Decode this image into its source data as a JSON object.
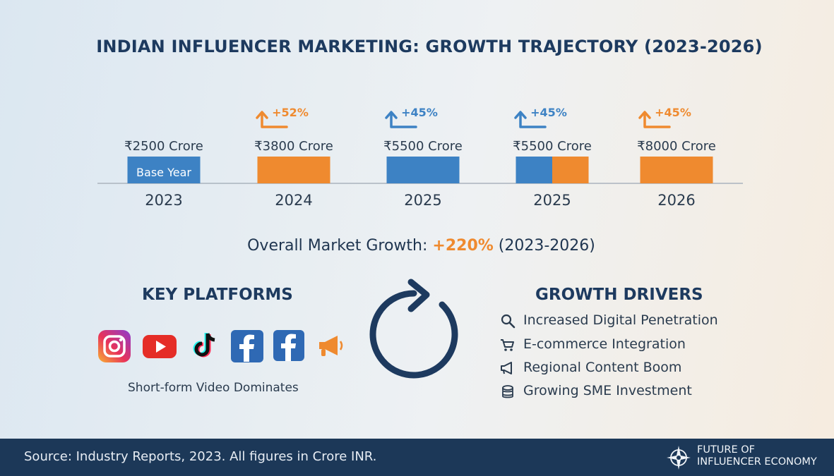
{
  "title": "INDIAN INFLUENCER MARKETING: GROWTH TRAJECTORY (2023-2026)",
  "chart_data": {
    "type": "bar",
    "categories": [
      "2023",
      "2024",
      "2025",
      "2025",
      "2026"
    ],
    "values": [
      2500,
      3800,
      5500,
      5500,
      8000
    ],
    "value_labels": [
      "₹2500 Crore",
      "₹3800 Crore",
      "₹5500 Crore",
      "₹5500 Crore",
      "₹8000 Crore"
    ],
    "growth_labels": [
      "",
      "+52%",
      "+45%",
      "+45%",
      "+45%"
    ],
    "bar_inner_labels": [
      "Base Year",
      "",
      "",
      "",
      ""
    ],
    "bar_colors": [
      "blue",
      "orange",
      "blue",
      "split",
      "orange"
    ],
    "colors": {
      "blue": "#3d82c4",
      "orange": "#ef8a2f",
      "axis": "#aab3bd",
      "text": "#2a3b4e"
    },
    "ylabel": "",
    "xlabel": ""
  },
  "overall_growth": {
    "prefix": "Overall Market Growth: ",
    "value": "+220%",
    "suffix": " (2023-2026)"
  },
  "platforms": {
    "title": "KEY PLATFORMS",
    "icons": [
      "instagram-icon",
      "youtube-icon",
      "tiktok-icon",
      "facebook-icon",
      "facebook-icon",
      "megaphone-icon"
    ],
    "caption": "Short-form Video Dominates"
  },
  "drivers": {
    "title": "GROWTH DRIVERS",
    "items": [
      {
        "icon": "magnifier-icon",
        "label": "Increased Digital Penetration"
      },
      {
        "icon": "cart-icon",
        "label": "E-commerce Integration"
      },
      {
        "icon": "megaphone-icon",
        "label": "Regional Content Boom"
      },
      {
        "icon": "coins-icon",
        "label": "Growing SME Investment"
      }
    ]
  },
  "footer": {
    "source": "Source: Industry Reports, 2023. All figures in Crore INR.",
    "brand_line1": "FUTURE OF",
    "brand_line2": "INFLUENCER ECONOMY"
  }
}
